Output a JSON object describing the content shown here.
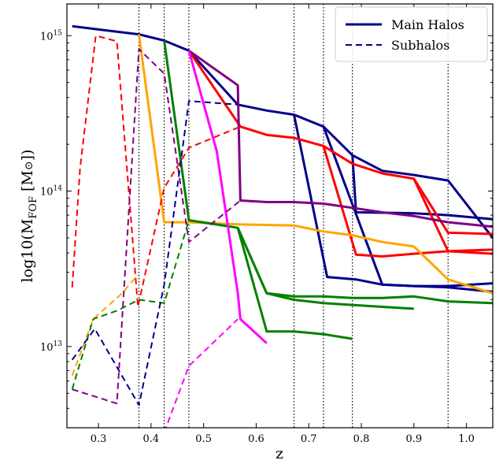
{
  "chart_data": {
    "type": "line",
    "xlabel": "z",
    "ylabel": "log10(M_FOF [M_⊙])",
    "ylabel_parts": {
      "pre": "log10(M",
      "sub": "FOF",
      "mid": " [M",
      "sun": "⊙",
      "post": "])"
    },
    "xlim": [
      0.24,
      1.05
    ],
    "ylim": [
      3000000000000,
      1600000000000000
    ],
    "yscale": "log",
    "x_ticks": [
      "0.3",
      "0.4",
      "0.5",
      "0.6",
      "0.7",
      "0.8",
      "0.9",
      "1.0"
    ],
    "x_tick_values": [
      0.3,
      0.4,
      0.5,
      0.6,
      0.7,
      0.8,
      0.9,
      1.0
    ],
    "y_ticks": [
      {
        "base": "10",
        "exp": "13",
        "value": 10000000000000
      },
      {
        "base": "10",
        "exp": "14",
        "value": 100000000000000
      },
      {
        "base": "10",
        "exp": "15",
        "value": 1000000000000000
      }
    ],
    "grid": false,
    "vlines": [
      0.377,
      0.425,
      0.472,
      0.672,
      0.728,
      0.783,
      0.965
    ],
    "legend": {
      "placement": "top-right",
      "entries": [
        {
          "label": "Main Halos",
          "style": "solid",
          "color": "#00008b"
        },
        {
          "label": "Subhalos",
          "style": "dashed",
          "color": "#00008b"
        }
      ]
    },
    "series": [
      {
        "kind": "main",
        "color": "#00008b",
        "points": [
          [
            0.25,
            1150000000000000.0
          ],
          [
            0.377,
            1020000000000000.0
          ],
          [
            0.425,
            930000000000000.0
          ],
          [
            0.472,
            800000000000000.0
          ],
          [
            0.565,
            360000000000000.0
          ],
          [
            0.62,
            330000000000000.0
          ],
          [
            0.672,
            310000000000000.0
          ],
          [
            0.728,
            260000000000000.0
          ],
          [
            0.783,
            170000000000000.0
          ],
          [
            0.84,
            135000000000000.0
          ],
          [
            0.9,
            127000000000000.0
          ],
          [
            0.965,
            117000000000000.0
          ],
          [
            1.05,
            50000000000000.0
          ]
        ]
      },
      {
        "kind": "main",
        "color": "#00008b",
        "points": [
          [
            0.672,
            310000000000000.0
          ],
          [
            0.735,
            28000000000000.0
          ],
          [
            0.79,
            27000000000000.0
          ],
          [
            0.84,
            25000000000000.0
          ],
          [
            0.9,
            24500000000000.0
          ],
          [
            0.965,
            24500000000000.0
          ],
          [
            1.05,
            25500000000000.0
          ]
        ]
      },
      {
        "kind": "main",
        "color": "#00008b",
        "points": [
          [
            0.728,
            260000000000000.0
          ],
          [
            0.84,
            25000000000000.0
          ],
          [
            0.9,
            24500000000000.0
          ],
          [
            0.965,
            24000000000000.0
          ],
          [
            1.05,
            22500000000000.0
          ]
        ]
      },
      {
        "kind": "main",
        "color": "#00008b",
        "points": [
          [
            0.783,
            170000000000000.0
          ],
          [
            0.79,
            73000000000000.0
          ],
          [
            0.9,
            72000000000000.0
          ],
          [
            0.965,
            70000000000000.0
          ],
          [
            1.05,
            66000000000000.0
          ]
        ]
      },
      {
        "kind": "main",
        "color": "#ff0000",
        "points": [
          [
            0.472,
            800000000000000.0
          ],
          [
            0.57,
            260000000000000.0
          ],
          [
            0.62,
            230000000000000.0
          ],
          [
            0.672,
            220000000000000.0
          ],
          [
            0.728,
            195000000000000.0
          ],
          [
            0.783,
            150000000000000.0
          ],
          [
            0.84,
            130000000000000.0
          ],
          [
            0.9,
            120000000000000.0
          ],
          [
            0.965,
            54000000000000.0
          ],
          [
            1.05,
            53000000000000.0
          ]
        ]
      },
      {
        "kind": "main",
        "color": "#ff0000",
        "points": [
          [
            0.728,
            195000000000000.0
          ],
          [
            0.79,
            39000000000000.0
          ],
          [
            0.84,
            38000000000000.0
          ],
          [
            0.9,
            39500000000000.0
          ],
          [
            0.965,
            41000000000000.0
          ],
          [
            1.05,
            42000000000000.0
          ]
        ]
      },
      {
        "kind": "main",
        "color": "#ff0000",
        "points": [
          [
            0.9,
            120000000000000.0
          ],
          [
            0.965,
            41000000000000.0
          ],
          [
            1.05,
            39500000000000.0
          ]
        ]
      },
      {
        "kind": "main",
        "color": "#800080",
        "points": [
          [
            0.472,
            800000000000000.0
          ],
          [
            0.565,
            480000000000000.0
          ],
          [
            0.57,
            87000000000000.0
          ],
          [
            0.62,
            85000000000000.0
          ],
          [
            0.672,
            85000000000000.0
          ],
          [
            0.728,
            83000000000000.0
          ],
          [
            0.783,
            78000000000000.0
          ],
          [
            0.84,
            73000000000000.0
          ],
          [
            0.9,
            69000000000000.0
          ],
          [
            0.965,
            63000000000000.0
          ],
          [
            1.05,
            59000000000000.0
          ]
        ]
      },
      {
        "kind": "main",
        "color": "#ffa500",
        "points": [
          [
            0.377,
            1020000000000000.0
          ],
          [
            0.425,
            63000000000000.0
          ],
          [
            0.472,
            63000000000000.0
          ],
          [
            0.57,
            61000000000000.0
          ],
          [
            0.672,
            60000000000000.0
          ],
          [
            0.728,
            55000000000000.0
          ],
          [
            0.783,
            52000000000000.0
          ],
          [
            0.84,
            47000000000000.0
          ],
          [
            0.9,
            44000000000000.0
          ],
          [
            0.965,
            27000000000000.0
          ],
          [
            1.05,
            22000000000000.0
          ]
        ]
      },
      {
        "kind": "main",
        "color": "#008000",
        "points": [
          [
            0.425,
            930000000000000.0
          ],
          [
            0.472,
            65000000000000.0
          ],
          [
            0.565,
            58000000000000.0
          ],
          [
            0.62,
            22000000000000.0
          ],
          [
            0.672,
            21000000000000.0
          ],
          [
            0.728,
            21000000000000.0
          ],
          [
            0.783,
            20500000000000.0
          ],
          [
            0.84,
            20500000000000.0
          ],
          [
            0.9,
            21000000000000.0
          ],
          [
            0.965,
            19500000000000.0
          ],
          [
            1.05,
            19000000000000.0
          ]
        ]
      },
      {
        "kind": "main",
        "color": "#008000",
        "points": [
          [
            0.565,
            58000000000000.0
          ],
          [
            0.62,
            22000000000000.0
          ],
          [
            0.672,
            20000000000000.0
          ],
          [
            0.728,
            19000000000000.0
          ],
          [
            0.783,
            18500000000000.0
          ],
          [
            0.84,
            18000000000000.0
          ],
          [
            0.9,
            17500000000000.0
          ]
        ]
      },
      {
        "kind": "main",
        "color": "#008000",
        "points": [
          [
            0.565,
            58000000000000.0
          ],
          [
            0.62,
            12500000000000.0
          ],
          [
            0.672,
            12500000000000.0
          ],
          [
            0.728,
            12000000000000.0
          ],
          [
            0.783,
            11200000000000.0
          ]
        ]
      },
      {
        "kind": "main",
        "color": "#ff00ff",
        "points": [
          [
            0.472,
            800000000000000.0
          ],
          [
            0.525,
            180000000000000.0
          ],
          [
            0.565,
            22000000000000.0
          ],
          [
            0.57,
            15000000000000.0
          ],
          [
            0.62,
            10500000000000.0
          ]
        ]
      },
      {
        "kind": "sub",
        "color": "#ff0000",
        "points": [
          [
            0.25,
            24000000000000.0
          ],
          [
            0.265,
            140000000000000.0
          ],
          [
            0.295,
            1000000000000000.0
          ],
          [
            0.335,
            920000000000000.0
          ],
          [
            0.375,
            18000000000000.0
          ],
          [
            0.425,
            105000000000000.0
          ],
          [
            0.472,
            190000000000000.0
          ],
          [
            0.57,
            260000000000000.0
          ]
        ]
      },
      {
        "kind": "sub",
        "color": "#ffa500",
        "points": [
          [
            0.25,
            6500000000000.0
          ],
          [
            0.29,
            15000000000000.0
          ],
          [
            0.345,
            22000000000000.0
          ],
          [
            0.375,
            29000000000000.0
          ]
        ]
      },
      {
        "kind": "sub",
        "color": "#800080",
        "points": [
          [
            0.25,
            5300000000000.0
          ],
          [
            0.335,
            4300000000000.0
          ],
          [
            0.377,
            820000000000000.0
          ],
          [
            0.425,
            570000000000000.0
          ],
          [
            0.472,
            47000000000000.0
          ],
          [
            0.57,
            87000000000000.0
          ]
        ]
      },
      {
        "kind": "sub",
        "color": "#008000",
        "points": [
          [
            0.25,
            5300000000000.0
          ],
          [
            0.29,
            15000000000000.0
          ],
          [
            0.335,
            17000000000000.0
          ],
          [
            0.377,
            20000000000000.0
          ],
          [
            0.425,
            19000000000000.0
          ],
          [
            0.472,
            65000000000000.0
          ]
        ]
      },
      {
        "kind": "sub",
        "color": "#00008b",
        "points": [
          [
            0.25,
            8200000000000.0
          ],
          [
            0.293,
            13000000000000.0
          ],
          [
            0.377,
            4200000000000.0
          ],
          [
            0.425,
            25000000000000.0
          ],
          [
            0.472,
            380000000000000.0
          ],
          [
            0.565,
            360000000000000.0
          ]
        ]
      },
      {
        "kind": "sub",
        "color": "#ff00ff",
        "points": [
          [
            0.425,
            2800000000000.0
          ],
          [
            0.472,
            7500000000000.0
          ],
          [
            0.565,
            15000000000000.0
          ]
        ]
      }
    ]
  }
}
